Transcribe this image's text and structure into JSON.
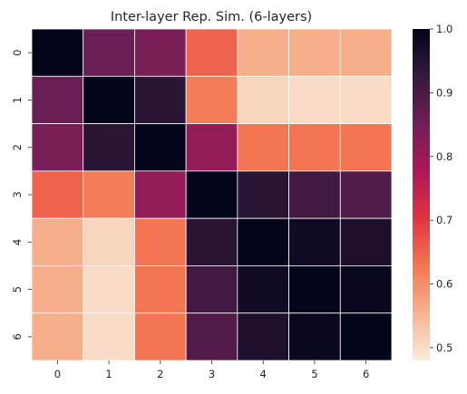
{
  "chart_data": {
    "type": "heatmap",
    "title": "Inter-layer Rep. Sim. (6-layers)",
    "xlabel": "",
    "ylabel": "",
    "x_categories": [
      "0",
      "1",
      "2",
      "3",
      "4",
      "5",
      "6"
    ],
    "y_categories": [
      "0",
      "1",
      "2",
      "3",
      "4",
      "5",
      "6"
    ],
    "values": [
      [
        1.0,
        0.86,
        0.84,
        0.65,
        0.56,
        0.56,
        0.56
      ],
      [
        0.86,
        1.0,
        0.94,
        0.62,
        0.51,
        0.5,
        0.5
      ],
      [
        0.84,
        0.94,
        1.0,
        0.81,
        0.63,
        0.63,
        0.63
      ],
      [
        0.65,
        0.62,
        0.81,
        1.0,
        0.94,
        0.91,
        0.89
      ],
      [
        0.56,
        0.51,
        0.63,
        0.94,
        1.0,
        0.98,
        0.96
      ],
      [
        0.56,
        0.5,
        0.63,
        0.91,
        0.98,
        1.0,
        0.99
      ],
      [
        0.56,
        0.5,
        0.63,
        0.89,
        0.96,
        0.99,
        1.0
      ]
    ],
    "colorbar": {
      "vmin": 0.48,
      "vmax": 1.0,
      "ticks": [
        "0.5",
        "0.6",
        "0.7",
        "0.8",
        "0.9",
        "1.0"
      ],
      "colormap": "rocket_r",
      "colormap_stops": [
        "#faebdd",
        "#f6b48f",
        "#f37651",
        "#e13342",
        "#ad1759",
        "#701f57",
        "#35193e",
        "#03051a"
      ]
    },
    "grid_line_color": "#ffffff"
  }
}
